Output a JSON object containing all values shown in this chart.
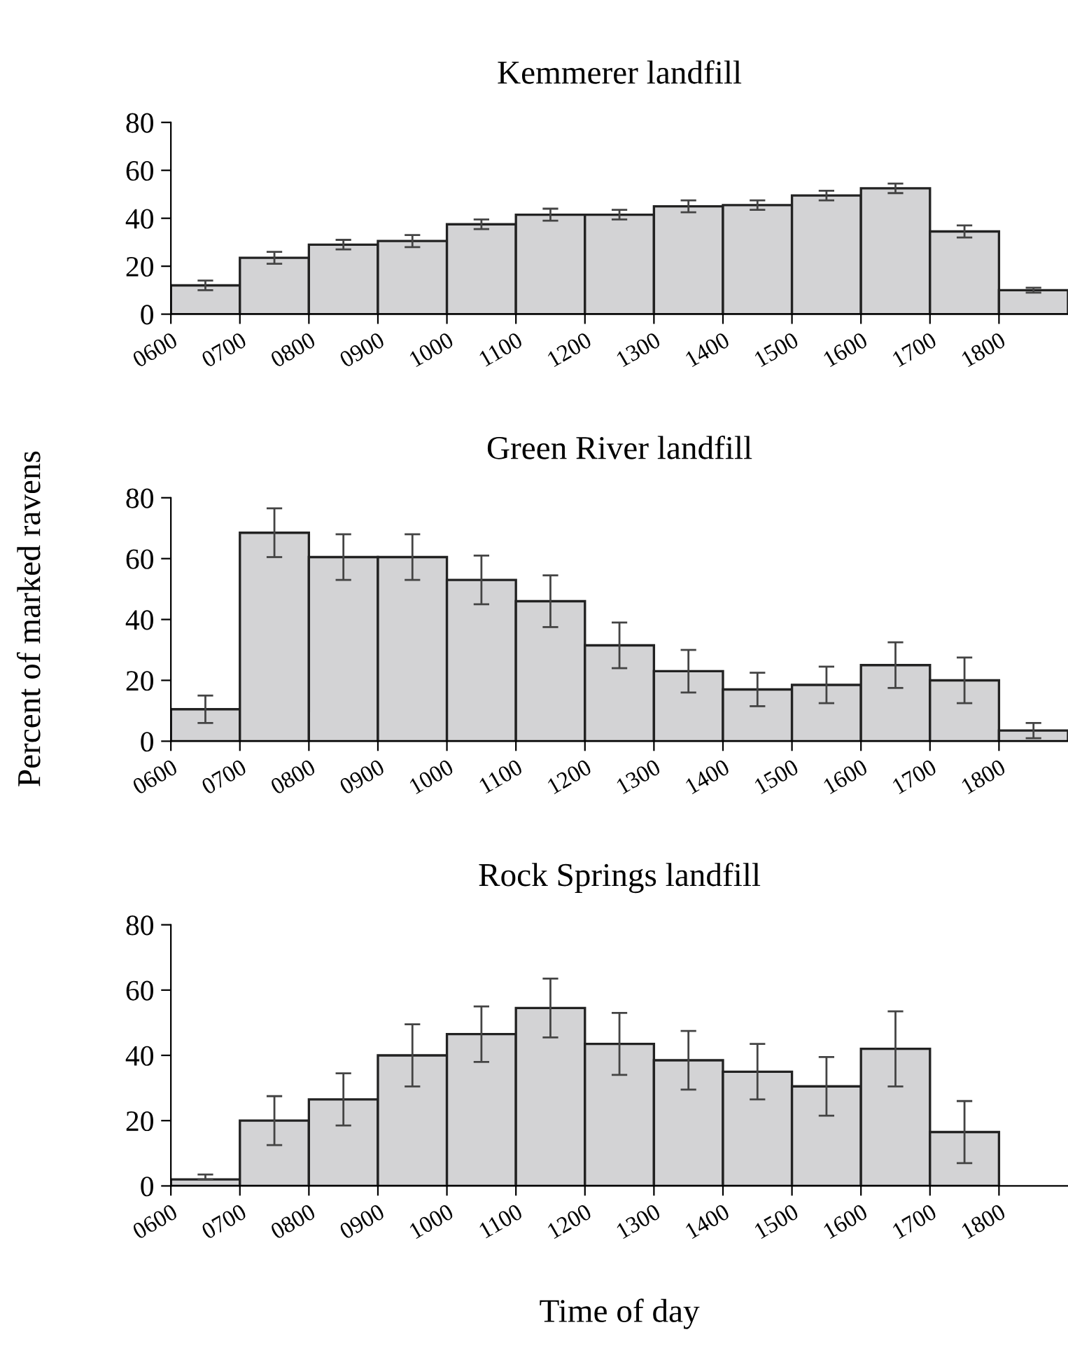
{
  "chart_data": [
    {
      "type": "histogram",
      "title": "Kemmerer landfill",
      "bins": [
        600,
        700,
        800,
        900,
        1000,
        1100,
        1200,
        1300,
        1400,
        1500,
        1600,
        1700,
        1800,
        1900
      ],
      "values": [
        12,
        23.5,
        29,
        30.5,
        37.5,
        41.5,
        41.5,
        45,
        45.5,
        49.5,
        52.5,
        34.5,
        10
      ],
      "errors": [
        2,
        2.5,
        2,
        2.5,
        2,
        2.5,
        2,
        2.5,
        2,
        2,
        2,
        2.5,
        1
      ],
      "color": "#d3d3d5",
      "xlim": [
        600,
        1900
      ],
      "ylim": [
        0,
        80
      ],
      "yticks": [
        0,
        20,
        40,
        60,
        80
      ],
      "xticks": [
        {
          "value": 600,
          "label": "0600"
        },
        {
          "value": 700,
          "label": "0700"
        },
        {
          "value": 800,
          "label": "0800"
        },
        {
          "value": 900,
          "label": "0900"
        },
        1000,
        1100,
        1200,
        1300,
        1400,
        1500,
        1600,
        1700,
        1800
      ],
      "grid": false
    },
    {
      "type": "histogram",
      "title": "Green River landfill",
      "ylabel": "Percent of marked ravens",
      "bins": [
        600,
        700,
        800,
        900,
        1000,
        1100,
        1200,
        1300,
        1400,
        1500,
        1600,
        1700,
        1800,
        1900
      ],
      "values": [
        10.5,
        68.5,
        60.5,
        60.5,
        53,
        46,
        31.5,
        23,
        17,
        18.5,
        25,
        20,
        3.5
      ],
      "errors": [
        4.5,
        8,
        7.5,
        7.5,
        8,
        8.5,
        7.5,
        7,
        5.5,
        6,
        7.5,
        7.5,
        2.5
      ],
      "color": "#d3d3d5",
      "xlim": [
        600,
        1900
      ],
      "ylim": [
        0,
        80
      ],
      "yticks": [
        0,
        20,
        40,
        60,
        80
      ],
      "xticks": [
        {
          "value": 600,
          "label": "0600"
        },
        {
          "value": 700,
          "label": "0700"
        },
        {
          "value": 800,
          "label": "0800"
        },
        {
          "value": 900,
          "label": "0900"
        },
        1000,
        1100,
        1200,
        1300,
        1400,
        1500,
        1600,
        1700,
        1800
      ],
      "grid": false
    },
    {
      "type": "histogram",
      "title": "Rock Springs landfill",
      "xlabel": "Time of day",
      "bins": [
        600,
        700,
        800,
        900,
        1000,
        1100,
        1200,
        1300,
        1400,
        1500,
        1600,
        1700,
        1800,
        1900
      ],
      "values": [
        2,
        20,
        26.5,
        40,
        46.5,
        54.5,
        43.5,
        38.5,
        35,
        30.5,
        42,
        16.5,
        null
      ],
      "errors": [
        [
          2,
          3.5
        ],
        7.5,
        8,
        9.5,
        8.5,
        9,
        9.5,
        9,
        8.5,
        9,
        11.5,
        9.5,
        null
      ],
      "color": "#d3d3d5",
      "xlim": [
        600,
        1900
      ],
      "ylim": [
        0,
        80
      ],
      "yticks": [
        0,
        20,
        40,
        60,
        80
      ],
      "xticks": [
        {
          "value": 600,
          "label": "0600"
        },
        {
          "value": 700,
          "label": "0700"
        },
        {
          "value": 800,
          "label": "0800"
        },
        {
          "value": 900,
          "label": "0900"
        },
        1000,
        1100,
        1200,
        1300,
        1400,
        1500,
        1600,
        1700,
        1800
      ],
      "grid": false
    }
  ]
}
